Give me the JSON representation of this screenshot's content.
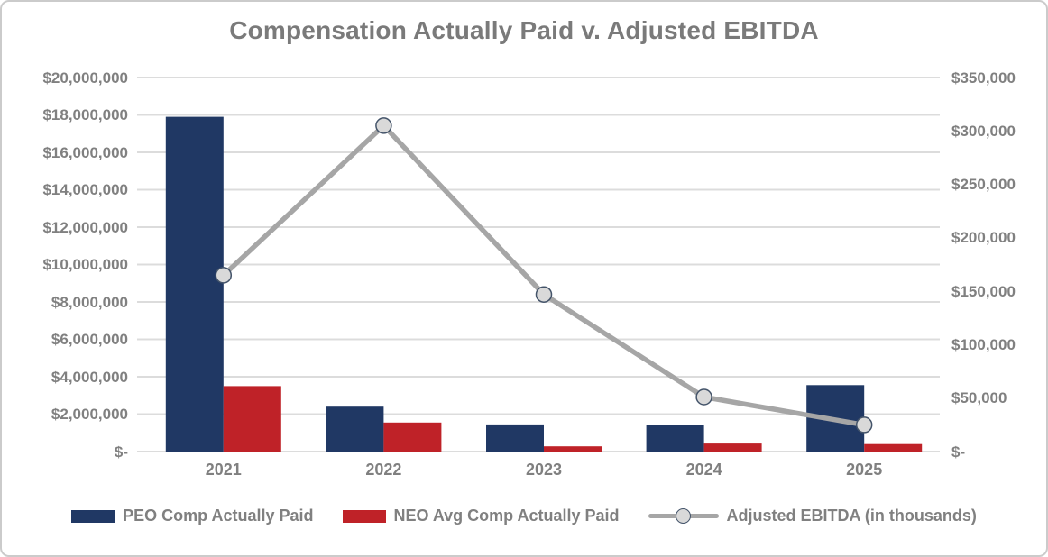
{
  "colors": {
    "background": "#ffffff",
    "card_border": "#cbcbcb",
    "title_text": "#7a7a7a",
    "axis_text": "#808080",
    "grid": "#dcdcdc",
    "peo_bar": "#203864",
    "neo_bar": "#bf2228",
    "ebitda_line": "#a6a6a6",
    "marker_fill": "#d9d9d9",
    "marker_stroke": "#44546a"
  },
  "chart_data": {
    "type": "combo-bar-line",
    "title": "Compensation Actually Paid v. Adjusted EBITDA",
    "categories": [
      "2021",
      "2022",
      "2023",
      "2024",
      "2025"
    ],
    "series": [
      {
        "name": "PEO Comp Actually Paid",
        "type": "bar",
        "axis": "left",
        "values": [
          17900000,
          2400000,
          1450000,
          1400000,
          3550000
        ]
      },
      {
        "name": "NEO Avg Comp Actually Paid",
        "type": "bar",
        "axis": "left",
        "values": [
          3500000,
          1550000,
          280000,
          430000,
          400000
        ]
      },
      {
        "name": "Adjusted EBITDA (in thousands)",
        "type": "line",
        "axis": "right",
        "values": [
          165000,
          305000,
          147000,
          51000,
          25000
        ]
      }
    ],
    "left_axis": {
      "min": 0,
      "max": 20000000,
      "step": 2000000,
      "tick_labels": [
        "$20,000,000",
        "$18,000,000",
        "$16,000,000",
        "$14,000,000",
        "$12,000,000",
        "$10,000,000",
        "$8,000,000",
        "$6,000,000",
        "$4,000,000",
        "$2,000,000",
        "$-"
      ]
    },
    "right_axis": {
      "min": 0,
      "max": 350000,
      "step": 50000,
      "tick_labels": [
        "$350,000",
        "$300,000",
        "$250,000",
        "$200,000",
        "$150,000",
        "$100,000",
        "$50,000",
        "$-"
      ]
    },
    "grid": true,
    "legend_position": "bottom"
  }
}
